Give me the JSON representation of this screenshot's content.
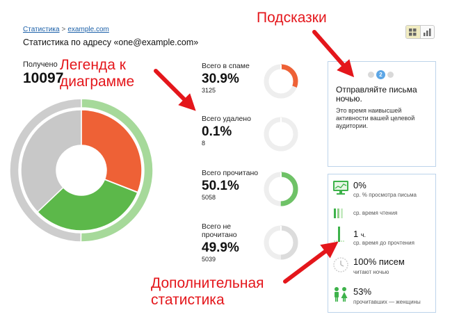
{
  "breadcrumb": {
    "parent": "Статистика",
    "separator": ">",
    "current": "example.com"
  },
  "page_title": "Статистика по адресу «one@example.com»",
  "received": {
    "label": "Получено",
    "value": "10097"
  },
  "chart_data": {
    "type": "pie",
    "title": "",
    "inner": {
      "categories": [
        "Всего в спаме",
        "Всего удалено",
        "Всего прочитано",
        "Всего не прочитано"
      ],
      "values": [
        30.9,
        0.1,
        31.9,
        37.1
      ],
      "colors": [
        "#ee6136",
        "#f2a33b",
        "#5cb84a",
        "#c8c8c8"
      ]
    },
    "outer": {
      "categories": [
        "Всего прочитано",
        "Всего не прочитано"
      ],
      "values": [
        50.1,
        49.9
      ],
      "colors": [
        "#a6d99a",
        "#cdcdcd"
      ]
    }
  },
  "stats": [
    {
      "label": "Всего в спаме",
      "percent": "30.9%",
      "count": "3125",
      "value": 30.9,
      "color": "#ee6136"
    },
    {
      "label": "Всего удалено",
      "percent": "0.1%",
      "count": "8",
      "value": 0.1,
      "color": "#f2a33b"
    },
    {
      "label": "Всего прочитано",
      "percent": "50.1%",
      "count": "5058",
      "value": 50.1,
      "color": "#6fc267"
    },
    {
      "label": "Всего не прочитано",
      "percent": "49.9%",
      "count": "5039",
      "value": 49.9,
      "color": "#dcdcdc"
    }
  ],
  "tips": {
    "active_page": "2",
    "title": "Отправляйте письма ночью.",
    "text": "Это время наивысшей активности вашей целевой аудитории."
  },
  "extra": {
    "open_rate": {
      "value": "0%",
      "caption": "ср. % просмотра письма"
    },
    "read_time": {
      "caption": "ср. время чтения"
    },
    "time_to_read": {
      "value": "1",
      "unit": "ч.",
      "caption": "ср. время до прочтения"
    },
    "night": {
      "value": "100% писем",
      "caption": "читают ночью"
    },
    "women": {
      "value": "53%",
      "caption": "прочитавших — женщины"
    }
  },
  "annotations": {
    "legend": "Легенда к\nдиаграмме",
    "tips": "Подсказки",
    "extra": "Дополнительная\nстатистика"
  },
  "colors": {
    "annotation": "#e4161b",
    "link": "#1a5fa8",
    "accent_green": "#3db24a",
    "tip_blue": "#5ca6e6"
  }
}
